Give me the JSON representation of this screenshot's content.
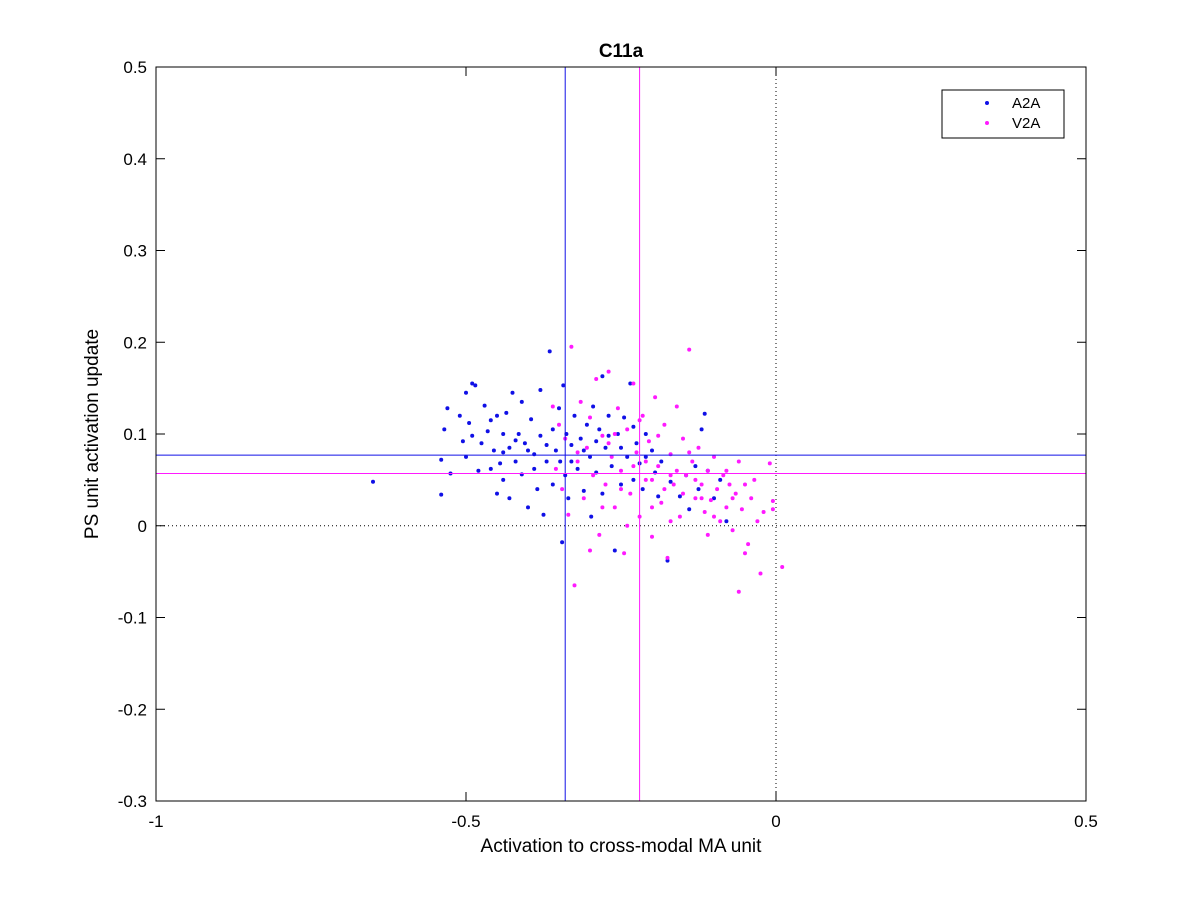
{
  "chart_data": {
    "type": "scatter",
    "title": "C11a",
    "xlabel": "Activation to cross-modal MA unit",
    "ylabel": "PS unit activation update",
    "xlim": [
      -1,
      0.5
    ],
    "ylim": [
      -0.3,
      0.5
    ],
    "x_ticks": [
      -1,
      -0.5,
      0,
      0.5
    ],
    "x_tick_labels": [
      "-1",
      "-0.5",
      "0",
      "0.5"
    ],
    "y_ticks": [
      -0.3,
      -0.2,
      -0.1,
      0,
      0.1,
      0.2,
      0.3,
      0.4,
      0.5
    ],
    "y_tick_labels": [
      "-0.3",
      "-0.2",
      "-0.1",
      "0",
      "0.1",
      "0.2",
      "0.3",
      "0.4",
      "0.5"
    ],
    "grid": false,
    "legend_position": "top-right",
    "zero_lines": {
      "x": 0,
      "y": 0,
      "style": "dotted",
      "color": "#000000"
    },
    "series": [
      {
        "name": "A2A",
        "color": "#1010e6",
        "mean_x": -0.34,
        "mean_y": 0.077,
        "points": [
          [
            -0.65,
            0.048
          ],
          [
            -0.54,
            0.072
          ],
          [
            -0.54,
            0.034
          ],
          [
            -0.535,
            0.105
          ],
          [
            -0.53,
            0.128
          ],
          [
            -0.525,
            0.057
          ],
          [
            -0.51,
            0.12
          ],
          [
            -0.505,
            0.092
          ],
          [
            -0.5,
            0.145
          ],
          [
            -0.495,
            0.112
          ],
          [
            -0.49,
            0.155
          ],
          [
            -0.49,
            0.098
          ],
          [
            -0.485,
            0.153
          ],
          [
            -0.48,
            0.06
          ],
          [
            -0.475,
            0.09
          ],
          [
            -0.47,
            0.131
          ],
          [
            -0.465,
            0.103
          ],
          [
            -0.46,
            0.115
          ],
          [
            -0.455,
            0.082
          ],
          [
            -0.45,
            0.12
          ],
          [
            -0.45,
            0.035
          ],
          [
            -0.445,
            0.068
          ],
          [
            -0.44,
            0.1
          ],
          [
            -0.44,
            0.05
          ],
          [
            -0.435,
            0.123
          ],
          [
            -0.43,
            0.085
          ],
          [
            -0.43,
            0.03
          ],
          [
            -0.425,
            0.145
          ],
          [
            -0.42,
            0.07
          ],
          [
            -0.415,
            0.1
          ],
          [
            -0.41,
            0.135
          ],
          [
            -0.41,
            0.056
          ],
          [
            -0.405,
            0.09
          ],
          [
            -0.4,
            0.02
          ],
          [
            -0.4,
            0.082
          ],
          [
            -0.395,
            0.116
          ],
          [
            -0.39,
            0.062
          ],
          [
            -0.385,
            0.04
          ],
          [
            -0.38,
            0.148
          ],
          [
            -0.38,
            0.098
          ],
          [
            -0.375,
            0.012
          ],
          [
            -0.37,
            0.07
          ],
          [
            -0.365,
            0.19
          ],
          [
            -0.36,
            0.105
          ],
          [
            -0.36,
            0.045
          ],
          [
            -0.355,
            0.082
          ],
          [
            -0.35,
            0.128
          ],
          [
            -0.348,
            0.07
          ],
          [
            -0.345,
            -0.018
          ],
          [
            -0.343,
            0.153
          ],
          [
            -0.34,
            0.055
          ],
          [
            -0.338,
            0.1
          ],
          [
            -0.335,
            0.03
          ],
          [
            -0.33,
            0.088
          ],
          [
            -0.325,
            0.12
          ],
          [
            -0.32,
            0.062
          ],
          [
            -0.315,
            0.095
          ],
          [
            -0.31,
            0.038
          ],
          [
            -0.305,
            0.11
          ],
          [
            -0.3,
            0.075
          ],
          [
            -0.298,
            0.01
          ],
          [
            -0.295,
            0.13
          ],
          [
            -0.29,
            0.058
          ],
          [
            -0.285,
            0.105
          ],
          [
            -0.28,
            0.163
          ],
          [
            -0.28,
            0.035
          ],
          [
            -0.275,
            0.085
          ],
          [
            -0.27,
            0.12
          ],
          [
            -0.265,
            0.065
          ],
          [
            -0.26,
            -0.027
          ],
          [
            -0.255,
            0.1
          ],
          [
            -0.25,
            0.045
          ],
          [
            -0.245,
            0.118
          ],
          [
            -0.24,
            0.075
          ],
          [
            -0.235,
            0.155
          ],
          [
            -0.23,
            0.05
          ],
          [
            -0.225,
            0.09
          ],
          [
            -0.22,
            0.068
          ],
          [
            -0.215,
            0.04
          ],
          [
            -0.21,
            0.1
          ],
          [
            -0.2,
            0.082
          ],
          [
            -0.195,
            0.058
          ],
          [
            -0.19,
            0.032
          ],
          [
            -0.185,
            0.07
          ],
          [
            -0.175,
            -0.038
          ],
          [
            -0.17,
            0.048
          ],
          [
            -0.155,
            0.032
          ],
          [
            -0.145,
            0.055
          ],
          [
            -0.14,
            0.018
          ],
          [
            -0.13,
            0.065
          ],
          [
            -0.125,
            0.04
          ],
          [
            -0.12,
            0.105
          ],
          [
            -0.115,
            0.122
          ],
          [
            -0.11,
            0.06
          ],
          [
            -0.1,
            0.03
          ],
          [
            -0.09,
            0.05
          ],
          [
            -0.08,
            0.005
          ],
          [
            -0.5,
            0.075
          ],
          [
            -0.46,
            0.062
          ],
          [
            -0.42,
            0.093
          ],
          [
            -0.39,
            0.078
          ],
          [
            -0.37,
            0.088
          ],
          [
            -0.33,
            0.07
          ],
          [
            -0.31,
            0.082
          ],
          [
            -0.29,
            0.092
          ],
          [
            -0.27,
            0.098
          ],
          [
            -0.25,
            0.085
          ],
          [
            -0.23,
            0.108
          ],
          [
            -0.21,
            0.075
          ],
          [
            -0.44,
            0.08
          ]
        ]
      },
      {
        "name": "V2A",
        "color": "#ff1aff",
        "mean_x": -0.22,
        "mean_y": 0.057,
        "points": [
          [
            -0.36,
            0.13
          ],
          [
            -0.355,
            0.062
          ],
          [
            -0.35,
            0.11
          ],
          [
            -0.345,
            0.04
          ],
          [
            -0.34,
            0.095
          ],
          [
            -0.335,
            0.012
          ],
          [
            -0.33,
            0.195
          ],
          [
            -0.325,
            -0.065
          ],
          [
            -0.32,
            0.07
          ],
          [
            -0.315,
            0.135
          ],
          [
            -0.31,
            0.03
          ],
          [
            -0.305,
            0.085
          ],
          [
            -0.3,
            0.118
          ],
          [
            -0.295,
            0.055
          ],
          [
            -0.29,
            0.16
          ],
          [
            -0.285,
            -0.01
          ],
          [
            -0.28,
            0.098
          ],
          [
            -0.275,
            0.045
          ],
          [
            -0.27,
            0.168
          ],
          [
            -0.265,
            0.075
          ],
          [
            -0.26,
            0.02
          ],
          [
            -0.255,
            0.128
          ],
          [
            -0.25,
            0.06
          ],
          [
            -0.245,
            -0.03
          ],
          [
            -0.24,
            0.105
          ],
          [
            -0.235,
            0.035
          ],
          [
            -0.23,
            0.155
          ],
          [
            -0.225,
            0.08
          ],
          [
            -0.22,
            0.01
          ],
          [
            -0.215,
            0.12
          ],
          [
            -0.21,
            0.05
          ],
          [
            -0.205,
            0.092
          ],
          [
            -0.2,
            -0.012
          ],
          [
            -0.195,
            0.14
          ],
          [
            -0.19,
            0.065
          ],
          [
            -0.185,
            0.025
          ],
          [
            -0.18,
            0.11
          ],
          [
            -0.175,
            -0.035
          ],
          [
            -0.17,
            0.078
          ],
          [
            -0.165,
            0.045
          ],
          [
            -0.16,
            0.13
          ],
          [
            -0.155,
            0.01
          ],
          [
            -0.15,
            0.095
          ],
          [
            -0.145,
            0.055
          ],
          [
            -0.14,
            0.192
          ],
          [
            -0.135,
            0.07
          ],
          [
            -0.13,
            0.03
          ],
          [
            -0.125,
            0.085
          ],
          [
            -0.12,
            0.045
          ],
          [
            -0.115,
            0.015
          ],
          [
            -0.11,
            0.06
          ],
          [
            -0.105,
            0.028
          ],
          [
            -0.1,
            0.075
          ],
          [
            -0.095,
            0.04
          ],
          [
            -0.09,
            0.005
          ],
          [
            -0.085,
            0.055
          ],
          [
            -0.08,
            0.02
          ],
          [
            -0.075,
            0.045
          ],
          [
            -0.07,
            -0.005
          ],
          [
            -0.065,
            0.035
          ],
          [
            -0.06,
            0.07
          ],
          [
            -0.055,
            0.018
          ],
          [
            -0.05,
            0.045
          ],
          [
            -0.045,
            -0.02
          ],
          [
            -0.04,
            0.03
          ],
          [
            -0.035,
            0.05
          ],
          [
            -0.03,
            0.005
          ],
          [
            -0.025,
            -0.052
          ],
          [
            -0.02,
            0.015
          ],
          [
            -0.01,
            0.068
          ],
          [
            -0.005,
            0.027
          ],
          [
            0.01,
            -0.045
          ],
          [
            -0.06,
            -0.072
          ],
          [
            -0.05,
            -0.03
          ],
          [
            -0.11,
            -0.01
          ],
          [
            -0.17,
            0.005
          ],
          [
            -0.2,
            0.02
          ],
          [
            -0.24,
            0.0
          ],
          [
            -0.28,
            0.02
          ],
          [
            -0.3,
            -0.027
          ],
          [
            -0.32,
            0.08
          ],
          [
            -0.27,
            0.09
          ],
          [
            -0.25,
            0.04
          ],
          [
            -0.21,
            0.07
          ],
          [
            -0.19,
            0.098
          ],
          [
            -0.16,
            0.06
          ],
          [
            -0.14,
            0.08
          ],
          [
            -0.12,
            0.03
          ],
          [
            -0.08,
            0.06
          ],
          [
            -0.005,
            0.018
          ],
          [
            -0.22,
            0.115
          ],
          [
            -0.18,
            0.04
          ],
          [
            -0.15,
            0.035
          ],
          [
            -0.13,
            0.05
          ],
          [
            -0.26,
            0.1
          ],
          [
            -0.23,
            0.065
          ],
          [
            -0.2,
            0.05
          ],
          [
            -0.17,
            0.055
          ],
          [
            -0.1,
            0.01
          ],
          [
            -0.07,
            0.03
          ]
        ]
      }
    ]
  }
}
